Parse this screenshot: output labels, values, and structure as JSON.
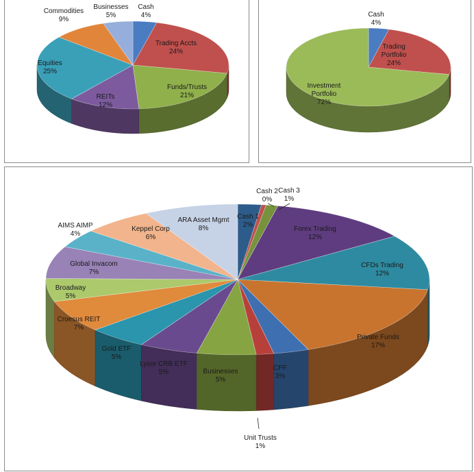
{
  "chart_data": [
    {
      "type": "pie",
      "title": "",
      "slices": [
        {
          "label": "Cash",
          "pct": "4%",
          "value": 4,
          "color": "#4a7cc2"
        },
        {
          "label": "Trading Accts",
          "pct": "24%",
          "value": 24,
          "color": "#c0504d"
        },
        {
          "label": "Funds/Trusts",
          "pct": "21%",
          "value": 21,
          "color": "#8fb04b"
        },
        {
          "label": "REITs",
          "pct": "12%",
          "value": 12,
          "color": "#7d5a9e"
        },
        {
          "label": "Equities",
          "pct": "25%",
          "value": 25,
          "color": "#3aa0b8"
        },
        {
          "label": "Commodities",
          "pct": "9%",
          "value": 9,
          "color": "#e0853a"
        },
        {
          "label": "Businesses",
          "pct": "5%",
          "value": 5,
          "color": "#95aedb"
        }
      ]
    },
    {
      "type": "pie",
      "title": "",
      "slices": [
        {
          "label": "Cash",
          "pct": "4%",
          "value": 4,
          "color": "#4a7cc2"
        },
        {
          "label": "Trading Portfolio",
          "pct": "24%",
          "value": 24,
          "color": "#c0504d"
        },
        {
          "label": "Investment Portfolio",
          "pct": "72%",
          "value": 72,
          "color": "#9bbb59"
        }
      ]
    },
    {
      "type": "pie",
      "title": "",
      "slices": [
        {
          "label": "Cash 1",
          "pct": "2%",
          "value": 2,
          "color": "#2e5c8a"
        },
        {
          "label": "Cash 2",
          "pct": "0%",
          "value": 0.4,
          "color": "#c0504d"
        },
        {
          "label": "Cash 3",
          "pct": "1%",
          "value": 1,
          "color": "#76923c"
        },
        {
          "label": "Forex Trading",
          "pct": "12%",
          "value": 12,
          "color": "#5f3c80"
        },
        {
          "label": "CFDs Trading",
          "pct": "12%",
          "value": 12,
          "color": "#2e8aa0"
        },
        {
          "label": "Private Funds",
          "pct": "17%",
          "value": 17,
          "color": "#c8742f"
        },
        {
          "label": "CPF",
          "pct": "3%",
          "value": 3,
          "color": "#3e6fb0"
        },
        {
          "label": "Unit Trusts",
          "pct": "1%",
          "value": 1.5,
          "color": "#b8403b"
        },
        {
          "label": "Businesses",
          "pct": "5%",
          "value": 5,
          "color": "#86a442"
        },
        {
          "label": "Lyxor CRB ETF",
          "pct": "5%",
          "value": 5,
          "color": "#6a4a8e"
        },
        {
          "label": "Gold ETF",
          "pct": "5%",
          "value": 5,
          "color": "#2a95ac"
        },
        {
          "label": "Croesus REIT",
          "pct": "7%",
          "value": 7,
          "color": "#e08a3c"
        },
        {
          "label": "Broadway",
          "pct": "5%",
          "value": 5,
          "color": "#acc96c"
        },
        {
          "label": "Global Invacom",
          "pct": "7%",
          "value": 7,
          "color": "#9882b6"
        },
        {
          "label": "AIMS AIMP",
          "pct": "4%",
          "value": 4,
          "color": "#5ab2c9"
        },
        {
          "label": "Keppel Corp",
          "pct": "6%",
          "value": 6,
          "color": "#f2b48c"
        },
        {
          "label": "ARA Asset Mgmt",
          "pct": "8%",
          "value": 8,
          "color": "#c6d2e6"
        }
      ]
    }
  ]
}
